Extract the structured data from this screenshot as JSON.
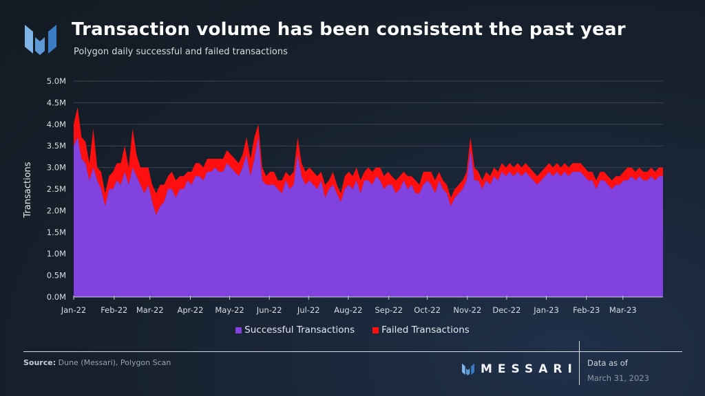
{
  "header": {
    "title": "Transaction volume has been consistent the past year",
    "subtitle": "Polygon daily successful and failed transactions",
    "logo_icon": "messari-logo-icon"
  },
  "colors": {
    "successful": "#8142e0",
    "failed": "#ff0f0f",
    "background": "#17212e",
    "gridline": "#3a434e",
    "axis": "#c9ced5"
  },
  "chart_data": {
    "type": "area",
    "stacked": true,
    "title": "Transaction volume has been consistent the past year",
    "subtitle": "Polygon daily successful and failed transactions",
    "xlabel": "",
    "ylabel": "Transactions",
    "ylim": [
      0,
      5000000
    ],
    "grid": true,
    "legend_position": "bottom",
    "y_ticks": [
      "0.0M",
      "0.5M",
      "1.0M",
      "1.5M",
      "2.0M",
      "2.5M",
      "3.0M",
      "3.5M",
      "4.0M",
      "4.5M",
      "5.0M"
    ],
    "x_ticks": [
      "Jan-22",
      "Feb-22",
      "Mar-22",
      "Apr-22",
      "May-22",
      "Jun-22",
      "Jul-22",
      "Aug-22",
      "Sep-22",
      "Oct-22",
      "Nov-22",
      "Dec-22",
      "Jan-23",
      "Feb-23",
      "Mar-23"
    ],
    "x_range_months": [
      0,
      15
    ],
    "x_unit": "months since Jan-2022 (approx. weekly samples)",
    "x": [
      0,
      0.1,
      0.2,
      0.3,
      0.4,
      0.5,
      0.6,
      0.7,
      0.8,
      0.9,
      1.0,
      1.1,
      1.2,
      1.3,
      1.4,
      1.5,
      1.6,
      1.7,
      1.8,
      1.9,
      2.0,
      2.1,
      2.2,
      2.3,
      2.4,
      2.5,
      2.6,
      2.7,
      2.8,
      2.9,
      3.0,
      3.1,
      3.2,
      3.3,
      3.4,
      3.5,
      3.6,
      3.7,
      3.8,
      3.9,
      4.0,
      4.1,
      4.2,
      4.3,
      4.4,
      4.5,
      4.6,
      4.7,
      4.8,
      4.9,
      5.0,
      5.1,
      5.2,
      5.3,
      5.4,
      5.5,
      5.6,
      5.7,
      5.8,
      5.9,
      6.0,
      6.1,
      6.2,
      6.3,
      6.4,
      6.5,
      6.6,
      6.7,
      6.8,
      6.9,
      7.0,
      7.1,
      7.2,
      7.3,
      7.4,
      7.5,
      7.6,
      7.7,
      7.8,
      7.9,
      8.0,
      8.1,
      8.2,
      8.3,
      8.4,
      8.5,
      8.6,
      8.7,
      8.8,
      8.9,
      9.0,
      9.1,
      9.2,
      9.3,
      9.4,
      9.5,
      9.6,
      9.7,
      9.8,
      9.9,
      10.0,
      10.1,
      10.2,
      10.3,
      10.4,
      10.5,
      10.6,
      10.7,
      10.8,
      10.9,
      11.0,
      11.1,
      11.2,
      11.3,
      11.4,
      11.5,
      11.6,
      11.7,
      11.8,
      11.9,
      12.0,
      12.1,
      12.2,
      12.3,
      12.4,
      12.5,
      12.6,
      12.7,
      12.8,
      12.9,
      13.0,
      13.1,
      13.2,
      13.3,
      13.4,
      13.5,
      13.6,
      13.7,
      13.8,
      13.9,
      14.0,
      14.1,
      14.2,
      14.3,
      14.4,
      14.5,
      14.6,
      14.7,
      14.8,
      14.9,
      15.0
    ],
    "series": [
      {
        "name": "Successful Transactions",
        "values": [
          3500000,
          3700000,
          3200000,
          3100000,
          2700000,
          3000000,
          2700000,
          2500000,
          2100000,
          2500000,
          2500000,
          2700000,
          2600000,
          2900000,
          2600000,
          3000000,
          2800000,
          2600000,
          2400000,
          2600000,
          2200000,
          1900000,
          2100000,
          2200000,
          2500000,
          2500000,
          2300000,
          2500000,
          2500000,
          2700000,
          2600000,
          2800000,
          2800000,
          2700000,
          2900000,
          2900000,
          3000000,
          2900000,
          2900000,
          3100000,
          3000000,
          2900000,
          2800000,
          3000000,
          3300000,
          2800000,
          3200000,
          3700000,
          2700000,
          2600000,
          2600000,
          2600000,
          2500000,
          2400000,
          2700000,
          2500000,
          2600000,
          3300000,
          2800000,
          2600000,
          2700000,
          2600000,
          2500000,
          2700000,
          2300000,
          2500000,
          2600000,
          2400000,
          2200000,
          2500000,
          2600000,
          2500000,
          2700000,
          2400000,
          2700000,
          2700000,
          2600000,
          2800000,
          2700000,
          2500000,
          2600000,
          2600000,
          2400000,
          2500000,
          2700000,
          2500000,
          2600000,
          2400000,
          2400000,
          2600000,
          2700000,
          2600000,
          2400000,
          2700000,
          2500000,
          2400000,
          2100000,
          2300000,
          2400000,
          2500000,
          2700000,
          3400000,
          2700000,
          2700000,
          2500000,
          2700000,
          2600000,
          2800000,
          2700000,
          2900000,
          2800000,
          2900000,
          2800000,
          2900000,
          2800000,
          2900000,
          2800000,
          2700000,
          2600000,
          2700000,
          2800000,
          2900000,
          2800000,
          2900000,
          2800000,
          2900000,
          2800000,
          2900000,
          2900000,
          2900000,
          2800000,
          2700000,
          2700000,
          2500000,
          2700000,
          2700000,
          2600000,
          2500000,
          2600000,
          2600000,
          2700000,
          2700000,
          2800000,
          2700000,
          2800000,
          2700000,
          2700000,
          2800000,
          2700000,
          2800000,
          2800000
        ]
      },
      {
        "name": "Failed Transactions",
        "values": [
          500000,
          700000,
          500000,
          500000,
          400000,
          900000,
          300000,
          400000,
          300000,
          300000,
          400000,
          400000,
          500000,
          600000,
          400000,
          900000,
          500000,
          400000,
          600000,
          400000,
          400000,
          500000,
          500000,
          400000,
          300000,
          400000,
          400000,
          300000,
          300000,
          200000,
          300000,
          300000,
          300000,
          300000,
          300000,
          300000,
          200000,
          300000,
          300000,
          300000,
          300000,
          300000,
          300000,
          300000,
          400000,
          400000,
          500000,
          300000,
          300000,
          200000,
          300000,
          300000,
          200000,
          300000,
          200000,
          300000,
          300000,
          400000,
          300000,
          300000,
          300000,
          300000,
          300000,
          200000,
          300000,
          200000,
          300000,
          200000,
          200000,
          300000,
          300000,
          300000,
          300000,
          300000,
          200000,
          300000,
          300000,
          200000,
          300000,
          300000,
          300000,
          200000,
          300000,
          300000,
          200000,
          300000,
          200000,
          300000,
          200000,
          300000,
          200000,
          300000,
          300000,
          200000,
          200000,
          200000,
          200000,
          200000,
          200000,
          200000,
          200000,
          300000,
          300000,
          200000,
          200000,
          200000,
          200000,
          200000,
          200000,
          200000,
          200000,
          200000,
          200000,
          200000,
          200000,
          200000,
          200000,
          200000,
          200000,
          200000,
          200000,
          200000,
          200000,
          200000,
          200000,
          200000,
          200000,
          200000,
          200000,
          200000,
          200000,
          200000,
          200000,
          200000,
          200000,
          200000,
          200000,
          200000,
          200000,
          200000,
          200000,
          300000,
          200000,
          200000,
          200000,
          200000,
          200000,
          200000,
          200000,
          200000,
          200000
        ]
      }
    ]
  },
  "legend": {
    "items": [
      {
        "label": "Successful Transactions"
      },
      {
        "label": "Failed Transactions"
      }
    ]
  },
  "footer": {
    "source_label": "Source:",
    "source_text": " Dune (Messari), Polygon Scan",
    "brand": "MESSARI",
    "brand_icon": "messari-logo-icon",
    "data_as_of_label": "Data as of",
    "data_as_of_date": "March 31, 2023"
  }
}
